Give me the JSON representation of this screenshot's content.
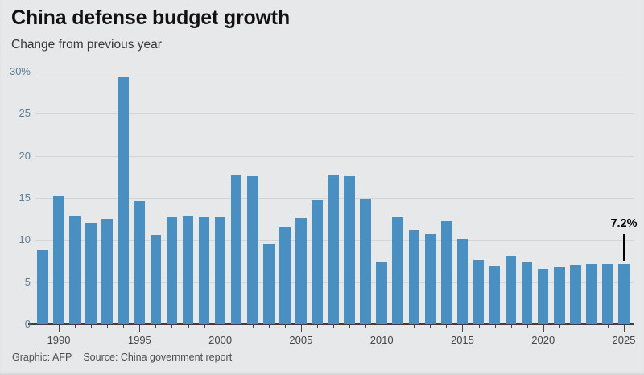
{
  "header": {
    "title": "China defense budget growth",
    "subtitle": "Change from previous year"
  },
  "footer": {
    "credit": "Graphic: AFP",
    "source": "Source: China government report"
  },
  "colors": {
    "background": "#E7E8E9",
    "bar": "#4A8FC1",
    "grid": "#D2D4D6",
    "axis": "#3D3D3D",
    "ytick_label": "#5C7D98",
    "xtick_label": "#454545",
    "annotation": "#000000"
  },
  "chart_data": {
    "type": "bar",
    "title": "China defense budget growth",
    "subtitle": "Change from previous year",
    "x": [
      1989,
      1990,
      1991,
      1992,
      1993,
      1994,
      1995,
      1996,
      1997,
      1998,
      1999,
      2000,
      2001,
      2002,
      2003,
      2004,
      2005,
      2006,
      2007,
      2008,
      2009,
      2010,
      2011,
      2012,
      2013,
      2014,
      2015,
      2016,
      2017,
      2018,
      2019,
      2020,
      2021,
      2022,
      2023,
      2024,
      2025
    ],
    "values": [
      8.8,
      15.2,
      12.8,
      12.0,
      12.5,
      29.3,
      14.6,
      10.6,
      12.7,
      12.8,
      12.7,
      12.7,
      17.7,
      17.6,
      9.6,
      11.6,
      12.6,
      14.7,
      17.8,
      17.6,
      14.9,
      7.5,
      12.7,
      11.2,
      10.7,
      12.2,
      10.1,
      7.6,
      7.0,
      8.1,
      7.5,
      6.6,
      6.8,
      7.1,
      7.2,
      7.2,
      7.2
    ],
    "xlabel": "",
    "ylabel": "",
    "ylim": [
      0,
      30
    ],
    "yticks": [
      0,
      5,
      10,
      15,
      20,
      25,
      30
    ],
    "ytick_labels": [
      "0",
      "5",
      "10",
      "15",
      "20",
      "25",
      "30%"
    ],
    "xticks_labeled": [
      1990,
      1995,
      2000,
      2005,
      2010,
      2015,
      2020,
      2025
    ],
    "grid": true,
    "legend": false,
    "annotation": {
      "x": 2025,
      "value": 7.2,
      "label": "7.2%"
    }
  }
}
